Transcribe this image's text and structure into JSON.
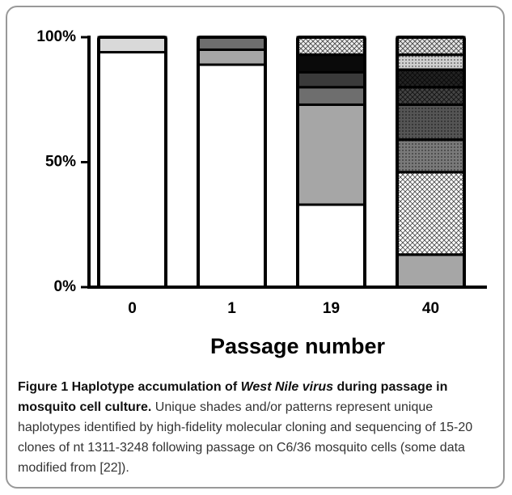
{
  "chart_data": {
    "type": "stacked-bar",
    "x_label": "Passage number",
    "categories": [
      "0",
      "1",
      "19",
      "40"
    ],
    "ylim": [
      0,
      100
    ],
    "yticks": [
      {
        "value": 0,
        "label": "0%"
      },
      {
        "value": 50,
        "label": "50%"
      },
      {
        "value": 100,
        "label": "100%"
      }
    ],
    "bars": [
      {
        "segments": [
          {
            "value": 94,
            "color": "#ffffff"
          },
          {
            "value": 6,
            "color": "#d9d9d9"
          }
        ]
      },
      {
        "segments": [
          {
            "value": 89,
            "color": "#ffffff"
          },
          {
            "value": 6,
            "color": "#a6a6a6"
          },
          {
            "value": 5,
            "color": "#6e6e6e"
          }
        ]
      },
      {
        "segments": [
          {
            "value": 33,
            "color": "#ffffff"
          },
          {
            "value": 40,
            "color": "#a6a6a6"
          },
          {
            "value": 7,
            "color": "#6e6e6e"
          },
          {
            "value": 6,
            "color": "#3a3a3a"
          },
          {
            "value": 7,
            "color": "#0a0a0a"
          },
          {
            "value": 7,
            "color": "#eeeeee",
            "pattern": "crosshatch"
          }
        ]
      },
      {
        "segments": [
          {
            "value": 13,
            "color": "#a6a6a6"
          },
          {
            "value": 33,
            "color": "#ffffff",
            "pattern": "crosshatch"
          },
          {
            "value": 13,
            "color": "#7a7a7a",
            "pattern": "dots"
          },
          {
            "value": 14,
            "color": "#555555",
            "pattern": "dots"
          },
          {
            "value": 7,
            "color": "#444444",
            "pattern": "crosshatch"
          },
          {
            "value": 7,
            "color": "#222222",
            "pattern": "crosshatch"
          },
          {
            "value": 6,
            "color": "#cfcfcf",
            "pattern": "dots"
          },
          {
            "value": 7,
            "color": "#e6e6e6",
            "pattern": "crosshatch"
          }
        ]
      }
    ]
  },
  "caption": {
    "title_parts": [
      "Figure 1 Haplotype accumulation of ",
      "West Nile virus",
      " during passage in mosquito cell culture."
    ],
    "text": " Unique shades and/or patterns represent unique haplotypes identified by high-fidelity molecular cloning and sequencing of 15-20 clones of nt 1311-3248 following passage on C6/36 mosquito cells (some data modified from [22])."
  }
}
